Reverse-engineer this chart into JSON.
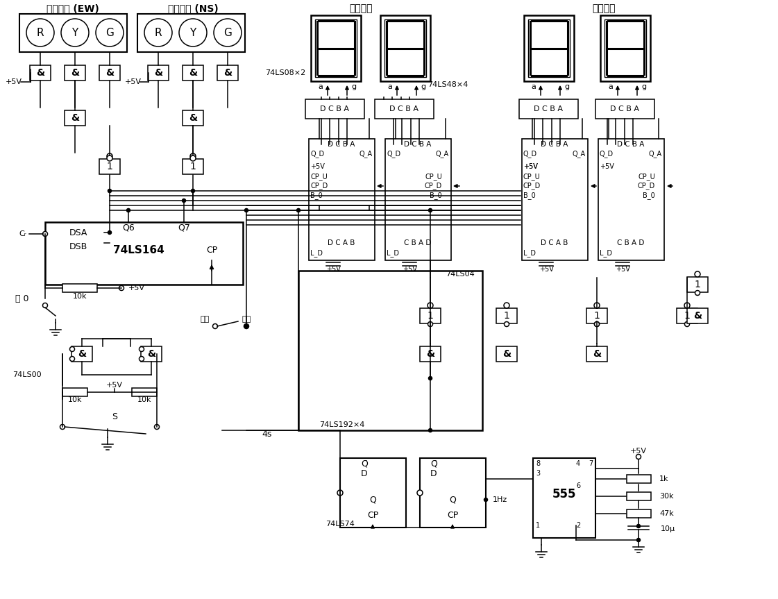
{
  "bg": "#ffffff",
  "lc": "#000000",
  "components": {
    "ew_label": "东西方向 (EW)",
    "ns_label": "南北方向 (NS)",
    "nb_label": "南北方向",
    "ew_label2": "东西方向",
    "ic_74ls08": "74LS08×2",
    "ic_74ls48": "74LS48×4",
    "ic_74ls164": "74LS164",
    "ic_74ls192": "74LS192×4",
    "ic_74ls74": "74LS74",
    "ic_74ls04": "74LS04",
    "ic_74ls00": "74LS00",
    "ic_555": "555"
  }
}
